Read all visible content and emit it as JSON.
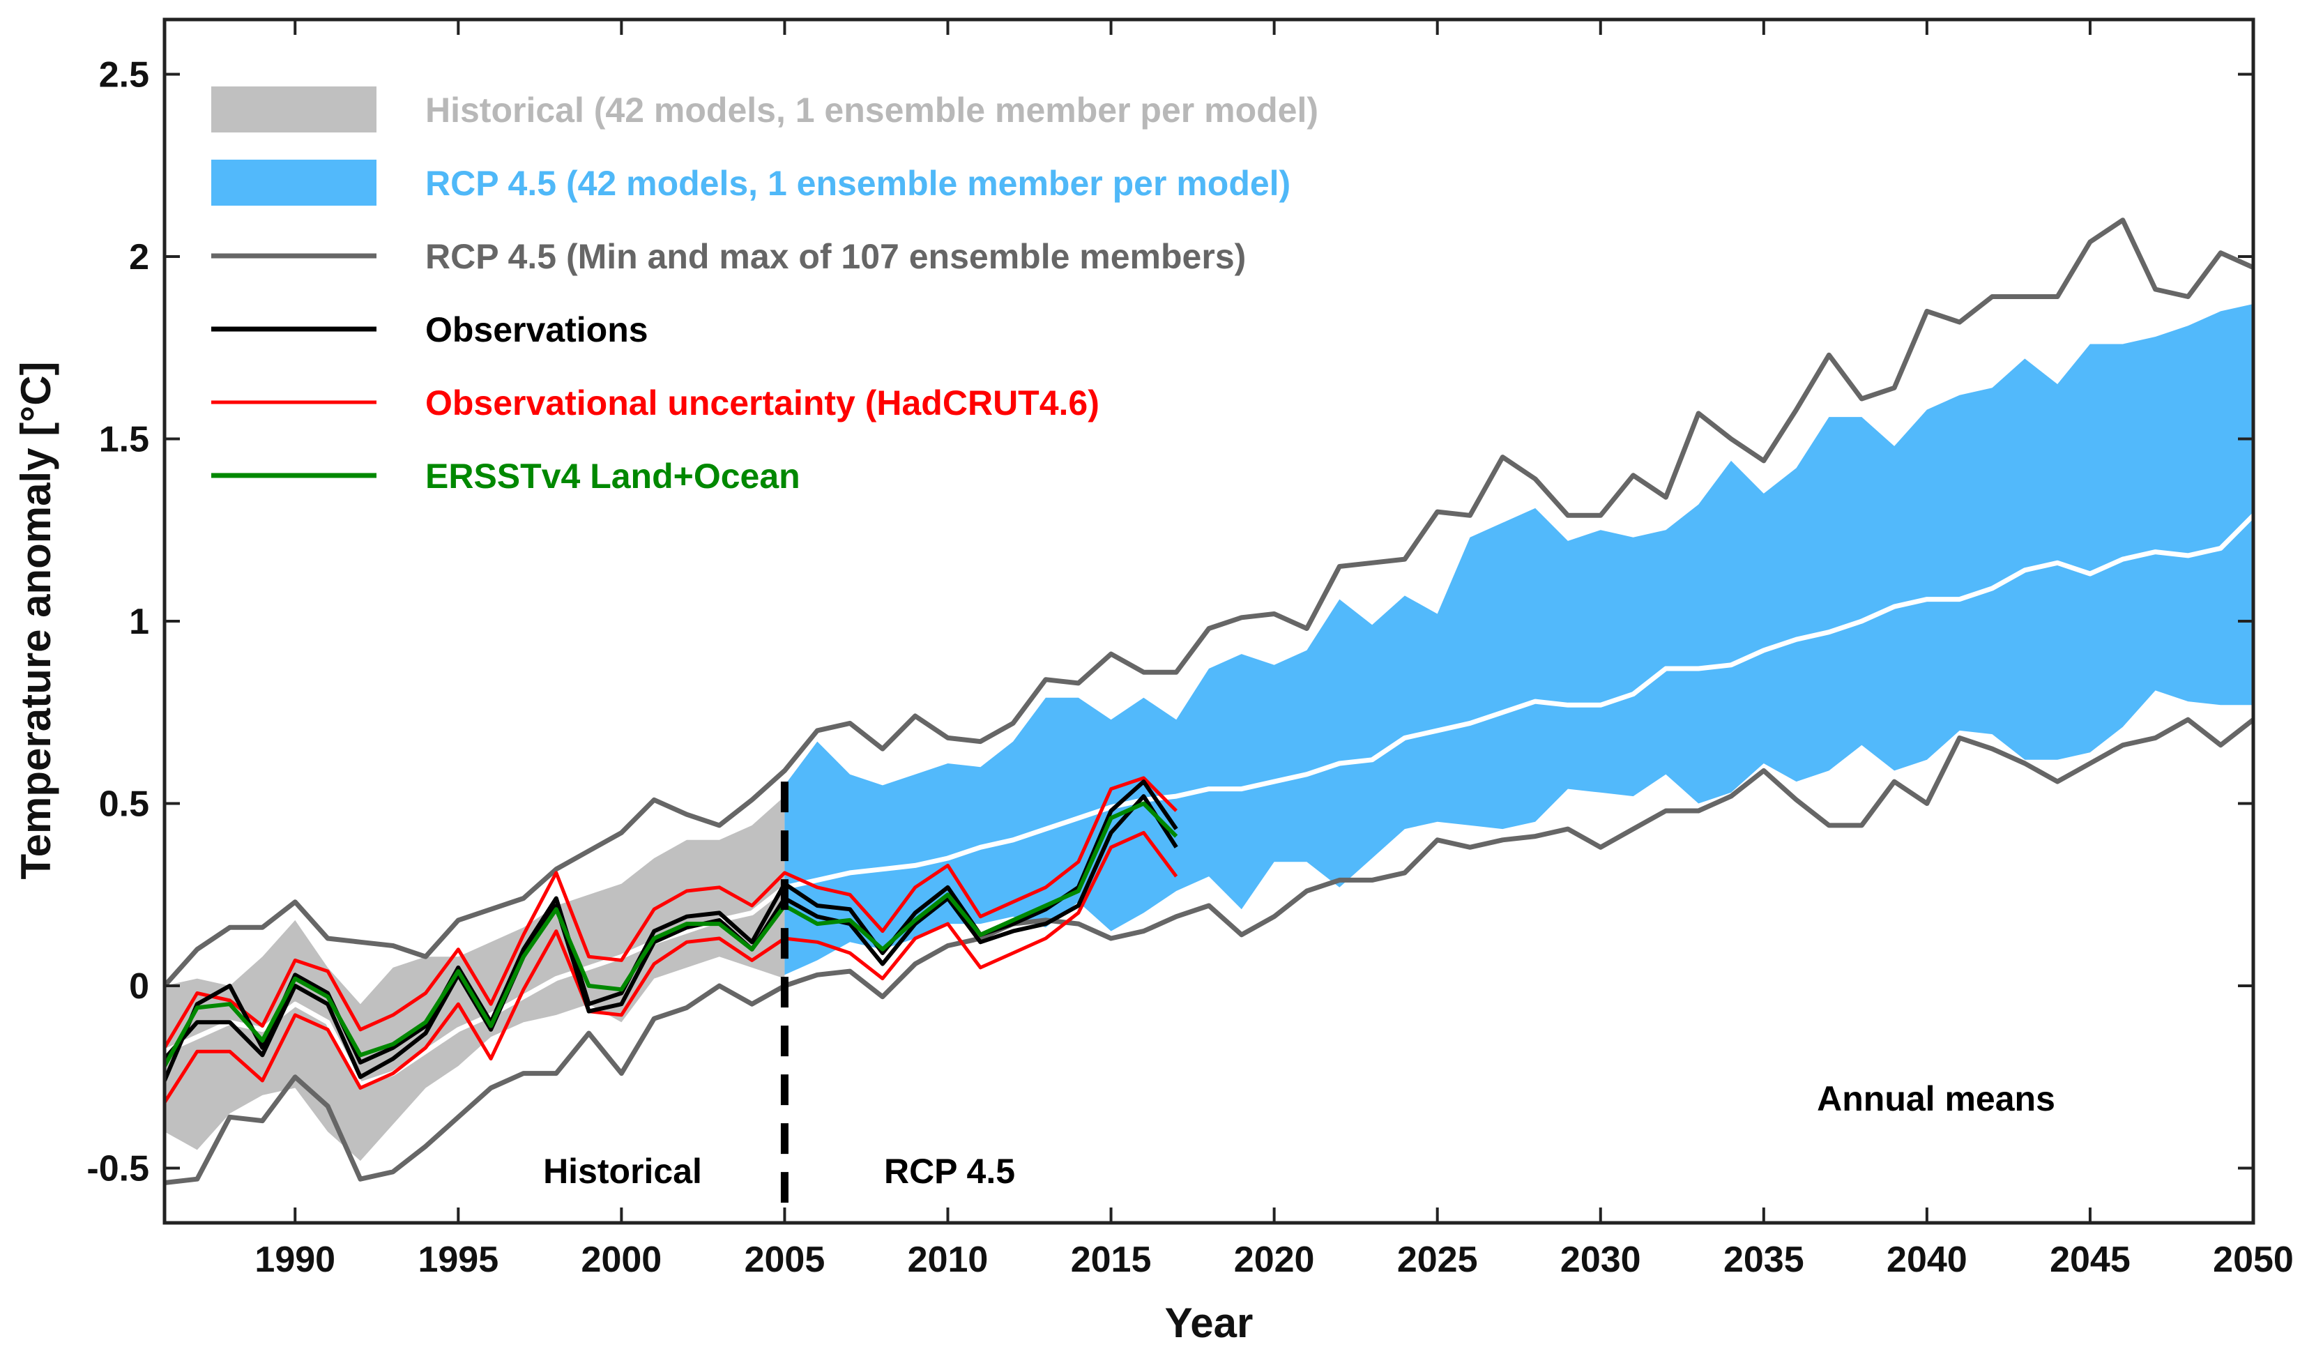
{
  "chart_data": {
    "type": "line",
    "xlabel": "Year",
    "ylabel": "Temperature anomaly [°C]",
    "xlim": [
      1986,
      2050
    ],
    "ylim": [
      -0.65,
      2.65
    ],
    "xticks": [
      1990,
      1995,
      2000,
      2005,
      2010,
      2015,
      2020,
      2025,
      2030,
      2035,
      2040,
      2045,
      2050
    ],
    "yticks": [
      -0.5,
      0,
      0.5,
      1,
      1.5,
      2,
      2.5
    ],
    "ytick_labels": [
      "-0.5",
      "0",
      "0.5",
      "1",
      "1.5",
      "2",
      "2.5"
    ],
    "colors": {
      "historical_band": "#c0c0c0",
      "rcp_band": "#52b9fb",
      "minmax": "#666666",
      "observations": "#000000",
      "obs_uncertainty": "#ff0000",
      "ersst": "#008800",
      "mean": "#ffffff"
    },
    "legend": [
      {
        "label": "Historical (42 models, 1 ensemble member per model)",
        "kind": "patch",
        "color": "#c0c0c0",
        "text_color": "#b8b8b8"
      },
      {
        "label": "RCP 4.5 (42 models, 1 ensemble member per model)",
        "kind": "patch",
        "color": "#52b9fb",
        "text_color": "#4fb8f8"
      },
      {
        "label": "RCP 4.5 (Min and max of 107 ensemble members)",
        "kind": "line",
        "color": "#666666",
        "text_color": "#666666"
      },
      {
        "label": "Observations",
        "kind": "line",
        "color": "#000000",
        "text_color": "#000000"
      },
      {
        "label": "Observational uncertainty (HadCRUT4.6)",
        "kind": "line",
        "color": "#ff0000",
        "text_color": "#ff0000"
      },
      {
        "label": "ERSSTv4 Land+Ocean",
        "kind": "line",
        "color": "#008800",
        "text_color": "#008800"
      }
    ],
    "annotations": {
      "historical": "Historical",
      "rcp": "RCP 4.5",
      "annual": "Annual means"
    },
    "divider_year": 2005,
    "historical_band": {
      "x": [
        1986,
        1987,
        1988,
        1989,
        1990,
        1991,
        1992,
        1993,
        1994,
        1995,
        1996,
        1997,
        1998,
        1999,
        2000,
        2001,
        2002,
        2003,
        2004,
        2005
      ],
      "upper": [
        0.0,
        0.02,
        0.0,
        0.08,
        0.18,
        0.05,
        -0.05,
        0.05,
        0.08,
        0.08,
        0.12,
        0.16,
        0.22,
        0.25,
        0.28,
        0.35,
        0.4,
        0.4,
        0.44,
        0.52
      ],
      "lower": [
        -0.4,
        -0.45,
        -0.35,
        -0.3,
        -0.28,
        -0.4,
        -0.48,
        -0.38,
        -0.28,
        -0.22,
        -0.14,
        -0.1,
        -0.08,
        -0.05,
        -0.1,
        0.02,
        0.05,
        0.08,
        0.05,
        0.02
      ]
    },
    "rcp_band": {
      "x": [
        2005,
        2006,
        2007,
        2008,
        2009,
        2010,
        2011,
        2012,
        2013,
        2014,
        2015,
        2016,
        2017,
        2018,
        2019,
        2020,
        2021,
        2022,
        2023,
        2024,
        2025,
        2026,
        2027,
        2028,
        2029,
        2030,
        2031,
        2032,
        2033,
        2034,
        2035,
        2036,
        2037,
        2038,
        2039,
        2040,
        2041,
        2042,
        2043,
        2044,
        2045,
        2046,
        2047,
        2048,
        2049,
        2050
      ],
      "upper": [
        0.55,
        0.67,
        0.58,
        0.55,
        0.58,
        0.61,
        0.6,
        0.67,
        0.79,
        0.79,
        0.73,
        0.79,
        0.73,
        0.87,
        0.91,
        0.88,
        0.92,
        1.06,
        0.99,
        1.07,
        1.02,
        1.23,
        1.27,
        1.31,
        1.22,
        1.25,
        1.23,
        1.25,
        1.32,
        1.44,
        1.35,
        1.42,
        1.56,
        1.56,
        1.48,
        1.58,
        1.62,
        1.64,
        1.72,
        1.65,
        1.76,
        1.76,
        1.78,
        1.81,
        1.85,
        1.87
      ],
      "lower": [
        0.03,
        0.07,
        0.12,
        0.1,
        0.13,
        0.17,
        0.17,
        0.19,
        0.16,
        0.23,
        0.15,
        0.2,
        0.26,
        0.3,
        0.21,
        0.34,
        0.34,
        0.27,
        0.35,
        0.43,
        0.45,
        0.44,
        0.43,
        0.45,
        0.54,
        0.53,
        0.52,
        0.58,
        0.5,
        0.53,
        0.61,
        0.56,
        0.59,
        0.66,
        0.59,
        0.62,
        0.7,
        0.69,
        0.62,
        0.62,
        0.64,
        0.71,
        0.81,
        0.78,
        0.77,
        0.77
      ]
    },
    "series": [
      {
        "name": "RCP 4.5 max",
        "color": "#666666",
        "width": 7,
        "x": [
          1986,
          1987,
          1988,
          1989,
          1990,
          1991,
          1992,
          1993,
          1994,
          1995,
          1996,
          1997,
          1998,
          1999,
          2000,
          2001,
          2002,
          2003,
          2004,
          2005,
          2006,
          2007,
          2008,
          2009,
          2010,
          2011,
          2012,
          2013,
          2014,
          2015,
          2016,
          2017,
          2018,
          2019,
          2020,
          2021,
          2022,
          2023,
          2024,
          2025,
          2026,
          2027,
          2028,
          2029,
          2030,
          2031,
          2032,
          2033,
          2034,
          2035,
          2036,
          2037,
          2038,
          2039,
          2040,
          2041,
          2042,
          2043,
          2044,
          2045,
          2046,
          2047,
          2048,
          2049,
          2050
        ],
        "y": [
          0.0,
          0.1,
          0.16,
          0.16,
          0.23,
          0.13,
          0.12,
          0.11,
          0.08,
          0.18,
          0.21,
          0.24,
          0.32,
          0.37,
          0.42,
          0.51,
          0.47,
          0.44,
          0.51,
          0.59,
          0.7,
          0.72,
          0.65,
          0.74,
          0.68,
          0.67,
          0.72,
          0.84,
          0.83,
          0.91,
          0.86,
          0.86,
          0.98,
          1.01,
          1.02,
          0.98,
          1.15,
          1.16,
          1.17,
          1.3,
          1.29,
          1.45,
          1.39,
          1.29,
          1.29,
          1.4,
          1.34,
          1.57,
          1.5,
          1.44,
          1.58,
          1.73,
          1.61,
          1.64,
          1.85,
          1.82,
          1.89,
          1.89,
          1.89,
          2.04,
          2.1,
          1.91,
          1.89,
          2.01,
          1.97
        ]
      },
      {
        "name": "RCP 4.5 min",
        "color": "#666666",
        "width": 7,
        "x": [
          1986,
          1987,
          1988,
          1989,
          1990,
          1991,
          1992,
          1993,
          1994,
          1995,
          1996,
          1997,
          1998,
          1999,
          2000,
          2001,
          2002,
          2003,
          2004,
          2005,
          2006,
          2007,
          2008,
          2009,
          2010,
          2011,
          2012,
          2013,
          2014,
          2015,
          2016,
          2017,
          2018,
          2019,
          2020,
          2021,
          2022,
          2023,
          2024,
          2025,
          2026,
          2027,
          2028,
          2029,
          2030,
          2031,
          2032,
          2033,
          2034,
          2035,
          2036,
          2037,
          2038,
          2039,
          2040,
          2041,
          2042,
          2043,
          2044,
          2045,
          2046,
          2047,
          2048,
          2049,
          2050
        ],
        "y": [
          -0.54,
          -0.53,
          -0.36,
          -0.37,
          -0.25,
          -0.33,
          -0.53,
          -0.51,
          -0.44,
          -0.36,
          -0.28,
          -0.24,
          -0.24,
          -0.13,
          -0.24,
          -0.09,
          -0.06,
          0.0,
          -0.05,
          0.0,
          0.03,
          0.04,
          -0.03,
          0.06,
          0.11,
          0.13,
          0.17,
          0.18,
          0.17,
          0.13,
          0.15,
          0.19,
          0.22,
          0.14,
          0.19,
          0.26,
          0.29,
          0.29,
          0.31,
          0.4,
          0.38,
          0.4,
          0.41,
          0.43,
          0.38,
          0.43,
          0.48,
          0.48,
          0.52,
          0.59,
          0.51,
          0.44,
          0.44,
          0.56,
          0.5,
          0.68,
          0.65,
          0.61,
          0.56,
          0.61,
          0.66,
          0.68,
          0.73,
          0.66,
          0.73
        ]
      },
      {
        "name": "Multi-model mean",
        "color": "#ffffff",
        "width": 7,
        "x": [
          1986,
          1987,
          1988,
          1989,
          1990,
          1991,
          1992,
          1993,
          1994,
          1995,
          1996,
          1997,
          1998,
          1999,
          2000,
          2001,
          2002,
          2003,
          2004,
          2005,
          2006,
          2007,
          2008,
          2009,
          2010,
          2011,
          2012,
          2013,
          2014,
          2015,
          2016,
          2017,
          2018,
          2019,
          2020,
          2021,
          2022,
          2023,
          2024,
          2025,
          2026,
          2027,
          2028,
          2029,
          2030,
          2031,
          2032,
          2033,
          2034,
          2035,
          2036,
          2037,
          2038,
          2039,
          2040,
          2041,
          2042,
          2043,
          2044,
          2045,
          2046,
          2047,
          2048,
          2049,
          2050
        ],
        "y": [
          -0.18,
          -0.14,
          -0.1,
          -0.12,
          -0.05,
          -0.1,
          -0.27,
          -0.24,
          -0.18,
          -0.12,
          -0.08,
          -0.03,
          0.02,
          0.05,
          0.08,
          0.12,
          0.15,
          0.18,
          0.2,
          0.27,
          0.29,
          0.31,
          0.32,
          0.33,
          0.35,
          0.38,
          0.4,
          0.43,
          0.46,
          0.49,
          0.51,
          0.52,
          0.54,
          0.54,
          0.56,
          0.58,
          0.61,
          0.62,
          0.68,
          0.7,
          0.72,
          0.75,
          0.78,
          0.77,
          0.77,
          0.8,
          0.87,
          0.87,
          0.88,
          0.92,
          0.95,
          0.97,
          1.0,
          1.04,
          1.06,
          1.06,
          1.09,
          1.14,
          1.16,
          1.13,
          1.17,
          1.19,
          1.18,
          1.2,
          1.29
        ]
      },
      {
        "name": "Observational uncertainty upper",
        "color": "#ff0000",
        "width": 5,
        "x": [
          1986,
          1987,
          1988,
          1989,
          1990,
          1991,
          1992,
          1993,
          1994,
          1995,
          1996,
          1997,
          1998,
          1999,
          2000,
          2001,
          2002,
          2003,
          2004,
          2005,
          2006,
          2007,
          2008,
          2009,
          2010,
          2011,
          2012,
          2013,
          2014,
          2015,
          2016,
          2017
        ],
        "y": [
          -0.17,
          -0.02,
          -0.04,
          -0.11,
          0.07,
          0.04,
          -0.12,
          -0.08,
          -0.02,
          0.1,
          -0.05,
          0.14,
          0.31,
          0.08,
          0.07,
          0.21,
          0.26,
          0.27,
          0.22,
          0.31,
          0.27,
          0.25,
          0.15,
          0.27,
          0.33,
          0.19,
          0.23,
          0.27,
          0.34,
          0.54,
          0.57,
          0.48
        ]
      },
      {
        "name": "Observational uncertainty lower",
        "color": "#ff0000",
        "width": 5,
        "x": [
          1986,
          1987,
          1988,
          1989,
          1990,
          1991,
          1992,
          1993,
          1994,
          1995,
          1996,
          1997,
          1998,
          1999,
          2000,
          2001,
          2002,
          2003,
          2004,
          2005,
          2006,
          2007,
          2008,
          2009,
          2010,
          2011,
          2012,
          2013,
          2014,
          2015,
          2016,
          2017
        ],
        "y": [
          -0.32,
          -0.18,
          -0.18,
          -0.26,
          -0.08,
          -0.12,
          -0.28,
          -0.24,
          -0.17,
          -0.05,
          -0.2,
          -0.01,
          0.15,
          -0.07,
          -0.08,
          0.06,
          0.12,
          0.13,
          0.07,
          0.13,
          0.12,
          0.09,
          0.02,
          0.13,
          0.17,
          0.05,
          0.09,
          0.13,
          0.2,
          0.38,
          0.42,
          0.3
        ]
      },
      {
        "name": "Observations A",
        "color": "#000000",
        "width": 6,
        "x": [
          1986,
          1987,
          1988,
          1989,
          1990,
          1991,
          1992,
          1993,
          1994,
          1995,
          1996,
          1997,
          1998,
          1999,
          2000,
          2001,
          2002,
          2003,
          2004,
          2005,
          2006,
          2007,
          2008,
          2009,
          2010,
          2011,
          2012,
          2013,
          2014,
          2015,
          2016,
          2017
        ],
        "y": [
          -0.26,
          -0.05,
          0.0,
          -0.17,
          0.03,
          -0.02,
          -0.21,
          -0.17,
          -0.11,
          0.05,
          -0.1,
          0.1,
          0.24,
          -0.05,
          -0.02,
          0.15,
          0.19,
          0.2,
          0.12,
          0.28,
          0.22,
          0.21,
          0.09,
          0.2,
          0.27,
          0.14,
          0.17,
          0.21,
          0.27,
          0.48,
          0.56,
          0.43
        ]
      },
      {
        "name": "Observations B",
        "color": "#000000",
        "width": 6,
        "x": [
          1986,
          1987,
          1988,
          1989,
          1990,
          1991,
          1992,
          1993,
          1994,
          1995,
          1996,
          1997,
          1998,
          1999,
          2000,
          2001,
          2002,
          2003,
          2004,
          2005,
          2006,
          2007,
          2008,
          2009,
          2010,
          2011,
          2012,
          2013,
          2014,
          2015,
          2016,
          2017
        ],
        "y": [
          -0.2,
          -0.1,
          -0.1,
          -0.19,
          0.0,
          -0.05,
          -0.25,
          -0.2,
          -0.13,
          0.03,
          -0.12,
          0.08,
          0.22,
          -0.07,
          -0.05,
          0.12,
          0.16,
          0.18,
          0.1,
          0.24,
          0.19,
          0.17,
          0.06,
          0.17,
          0.24,
          0.12,
          0.15,
          0.17,
          0.22,
          0.42,
          0.52,
          0.38
        ]
      },
      {
        "name": "ERSSTv4 Land+Ocean",
        "color": "#008800",
        "width": 6,
        "x": [
          1986,
          1987,
          1988,
          1989,
          1990,
          1991,
          1992,
          1993,
          1994,
          1995,
          1996,
          1997,
          1998,
          1999,
          2000,
          2001,
          2002,
          2003,
          2004,
          2005,
          2006,
          2007,
          2008,
          2009,
          2010,
          2011,
          2012,
          2013,
          2014,
          2015,
          2016,
          2017
        ],
        "y": [
          -0.22,
          -0.06,
          -0.05,
          -0.15,
          0.02,
          -0.03,
          -0.19,
          -0.16,
          -0.1,
          0.04,
          -0.11,
          0.08,
          0.21,
          0.0,
          -0.01,
          0.13,
          0.17,
          0.17,
          0.1,
          0.22,
          0.17,
          0.18,
          0.1,
          0.18,
          0.25,
          0.14,
          0.18,
          0.22,
          0.26,
          0.46,
          0.5,
          0.41
        ]
      }
    ]
  }
}
